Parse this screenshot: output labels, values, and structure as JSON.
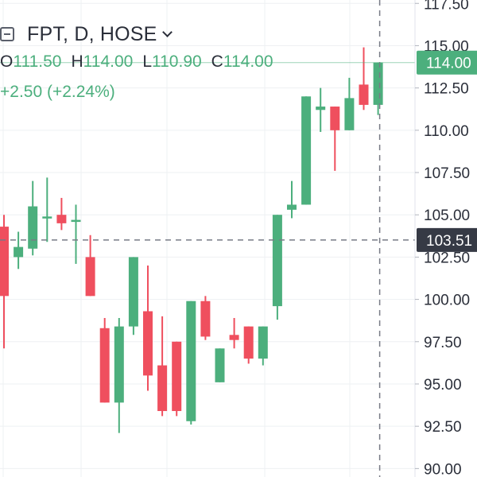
{
  "legend": {
    "title": "FPT, D, HOSE",
    "ohlc": [
      {
        "label": "O",
        "value": "111.50"
      },
      {
        "label": "H",
        "value": "114.00"
      },
      {
        "label": "L",
        "value": "110.90"
      },
      {
        "label": "C",
        "value": "114.00"
      }
    ],
    "change": "+2.50 (+2.24%)"
  },
  "colors": {
    "up": "#4caf7d",
    "down": "#ef4f5e",
    "grid": "#eef0f3",
    "axis_text": "#2a2e39",
    "crosshair": "#787b86",
    "last_price_bg": "#4caf7d",
    "crosshair_label_bg": "#363a45"
  },
  "chart_data": {
    "type": "candlestick",
    "y_axis": {
      "ticks": [
        "90.00",
        "92.50",
        "95.00",
        "97.50",
        "100.00",
        "102.50",
        "105.00",
        "107.50",
        "110.00",
        "112.50",
        "115.00",
        "117.50"
      ],
      "ylim": [
        89.5,
        117.7
      ],
      "position": "right"
    },
    "grid": true,
    "candles": [
      {
        "o": 104.3,
        "h": 105.0,
        "l": 97.1,
        "c": 100.2
      },
      {
        "o": 102.5,
        "h": 104.0,
        "l": 101.8,
        "c": 103.1
      },
      {
        "o": 103.0,
        "h": 107.0,
        "l": 102.6,
        "c": 105.5
      },
      {
        "o": 104.9,
        "h": 107.2,
        "l": 103.4,
        "c": 104.9
      },
      {
        "o": 105.0,
        "h": 106.0,
        "l": 104.1,
        "c": 104.5
      },
      {
        "o": 104.7,
        "h": 105.6,
        "l": 102.1,
        "c": 104.7
      },
      {
        "o": 102.5,
        "h": 103.8,
        "l": 100.2,
        "c": 100.2
      },
      {
        "o": 98.3,
        "h": 98.9,
        "l": 93.9,
        "c": 93.9
      },
      {
        "o": 93.9,
        "h": 98.9,
        "l": 92.1,
        "c": 98.4
      },
      {
        "o": 98.4,
        "h": 102.5,
        "l": 97.9,
        "c": 102.5
      },
      {
        "o": 99.3,
        "h": 102.0,
        "l": 94.6,
        "c": 95.5
      },
      {
        "o": 96.1,
        "h": 99.0,
        "l": 93.1,
        "c": 93.4
      },
      {
        "o": 97.5,
        "h": 97.5,
        "l": 93.1,
        "c": 93.4
      },
      {
        "o": 92.8,
        "h": 99.9,
        "l": 92.6,
        "c": 99.9
      },
      {
        "o": 99.9,
        "h": 100.2,
        "l": 97.6,
        "c": 97.8
      },
      {
        "o": 95.1,
        "h": 97.1,
        "l": 95.1,
        "c": 97.1
      },
      {
        "o": 97.9,
        "h": 98.9,
        "l": 97.1,
        "c": 97.6
      },
      {
        "o": 98.4,
        "h": 98.4,
        "l": 96.2,
        "c": 96.5
      },
      {
        "o": 96.5,
        "h": 98.4,
        "l": 96.1,
        "c": 98.4
      },
      {
        "o": 99.6,
        "h": 105.0,
        "l": 98.8,
        "c": 105.0
      },
      {
        "o": 105.3,
        "h": 107.0,
        "l": 104.8,
        "c": 105.6
      },
      {
        "o": 105.6,
        "h": 112.0,
        "l": 105.6,
        "c": 112.0
      },
      {
        "o": 111.2,
        "h": 112.5,
        "l": 109.9,
        "c": 111.4
      },
      {
        "o": 111.4,
        "h": 111.4,
        "l": 107.6,
        "c": 110.0
      },
      {
        "o": 110.0,
        "h": 113.1,
        "l": 110.0,
        "c": 111.9
      },
      {
        "o": 112.7,
        "h": 114.9,
        "l": 111.2,
        "c": 111.5
      },
      {
        "o": 111.5,
        "h": 114.0,
        "l": 110.9,
        "c": 114.0
      }
    ],
    "last_price": {
      "value": 114.0,
      "label": "114.00"
    },
    "crosshair": {
      "price": 103.51,
      "label": "103.51",
      "candle_index": 26
    }
  }
}
